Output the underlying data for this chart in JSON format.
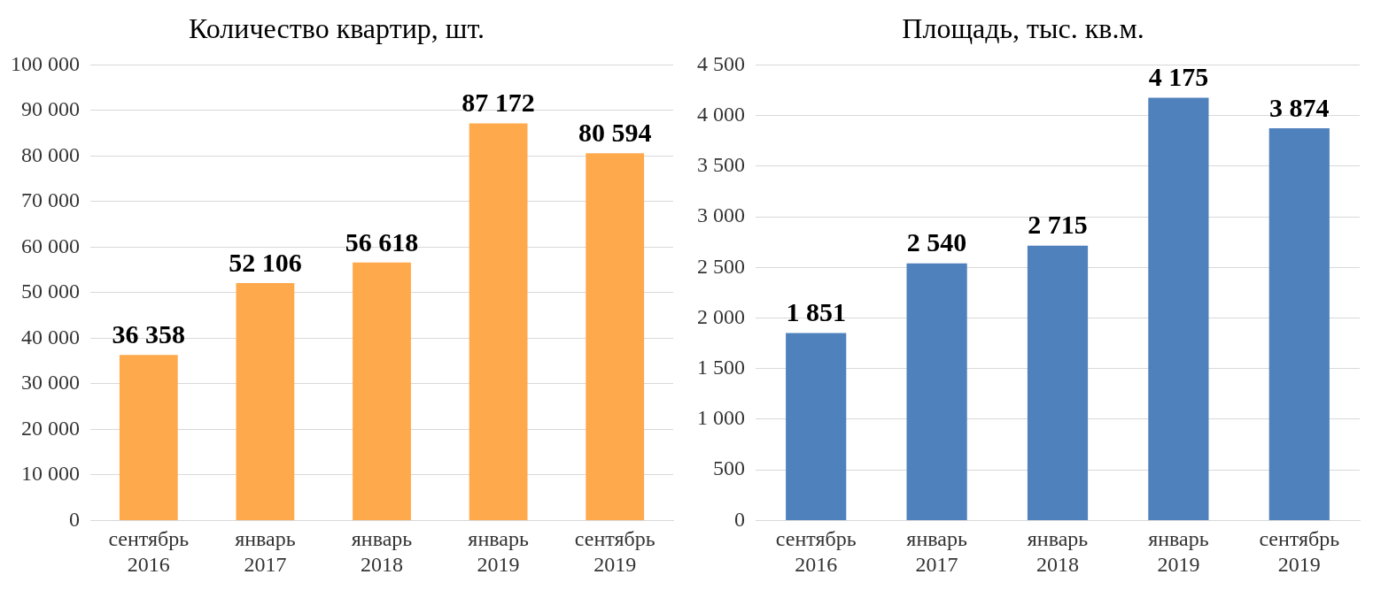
{
  "chart_data": [
    {
      "type": "bar",
      "title": "Количество квартир, шт.",
      "categories": [
        "сентябрь 2016",
        "январь 2017",
        "январь 2018",
        "январь 2019",
        "сентябрь 2019"
      ],
      "values": [
        36358,
        52106,
        56618,
        87172,
        80594
      ],
      "color": "#ffa94d",
      "ylim": [
        0,
        100000
      ],
      "yticks": [
        {
          "value": 0,
          "label": "0"
        },
        {
          "value": 10000,
          "label": "10 000"
        },
        {
          "value": 20000,
          "label": "20 000"
        },
        {
          "value": 30000,
          "label": "30 000"
        },
        {
          "value": 40000,
          "label": "40 000"
        },
        {
          "value": 50000,
          "label": "50 000"
        },
        {
          "value": 60000,
          "label": "60 000"
        },
        {
          "value": 70000,
          "label": "70 000"
        },
        {
          "value": 80000,
          "label": "80 000"
        },
        {
          "value": 90000,
          "label": "90 000"
        },
        {
          "value": 100000,
          "label": "100 000"
        }
      ],
      "grid": "y",
      "value_labels": [
        "36 358",
        "52 106",
        "56 618",
        "87 172",
        "80 594"
      ]
    },
    {
      "type": "bar",
      "title": "Площадь, тыс. кв.м.",
      "categories": [
        "сентябрь 2016",
        "январь 2017",
        "январь 2018",
        "январь 2019",
        "сентябрь 2019"
      ],
      "values": [
        1851,
        2540,
        2715,
        4175,
        3874
      ],
      "color": "#4f81bd",
      "ylim": [
        0,
        4500
      ],
      "yticks": [
        {
          "value": 0,
          "label": "0"
        },
        {
          "value": 500,
          "label": "500"
        },
        {
          "value": 1000,
          "label": "1 000"
        },
        {
          "value": 1500,
          "label": "1 500"
        },
        {
          "value": 2000,
          "label": "2 000"
        },
        {
          "value": 2500,
          "label": "2 500"
        },
        {
          "value": 3000,
          "label": "3 000"
        },
        {
          "value": 3500,
          "label": "3 500"
        },
        {
          "value": 4000,
          "label": "4 000"
        },
        {
          "value": 4500,
          "label": "4 500"
        }
      ],
      "grid": "y",
      "value_labels": [
        "1 851",
        "2 540",
        "2 715",
        "4 175",
        "3 874"
      ]
    }
  ]
}
